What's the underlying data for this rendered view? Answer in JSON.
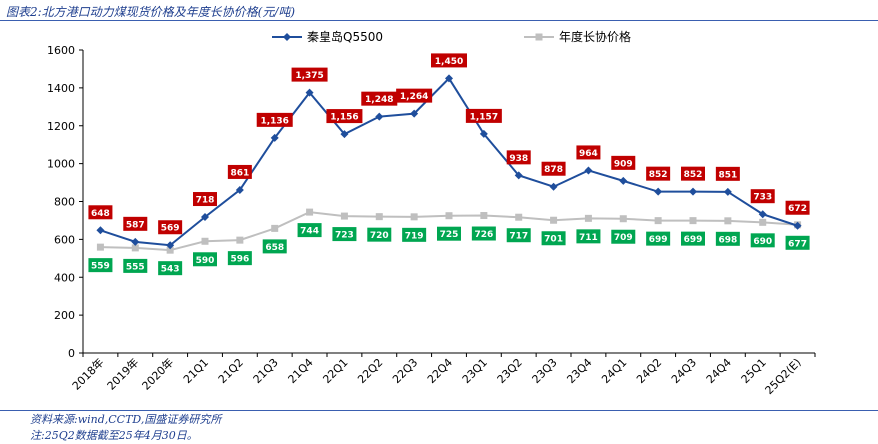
{
  "header": {
    "title": "图表2:北方港口动力煤现货价格及年度长协价格(元/吨)"
  },
  "footer": {
    "source": "资料来源:wind,CCTD,国盛证券研究所",
    "note": "注:25Q2数据截至25年4月30日。"
  },
  "chart_data": {
    "type": "line",
    "categories": [
      "2018年",
      "2019年",
      "2020年",
      "21Q1",
      "21Q2",
      "21Q3",
      "21Q4",
      "22Q1",
      "22Q2",
      "22Q3",
      "22Q4",
      "23Q1",
      "23Q2",
      "23Q3",
      "23Q4",
      "24Q1",
      "24Q2",
      "24Q3",
      "24Q4",
      "25Q1",
      "25Q2(E)"
    ],
    "series": [
      {
        "name": "秦皇岛Q5500",
        "color": "#1f4e9c",
        "label_color": "#c00000",
        "values": [
          648,
          587,
          569,
          718,
          861,
          1136,
          1375,
          1156,
          1248,
          1264,
          1450,
          1157,
          938,
          878,
          964,
          909,
          852,
          852,
          851,
          733,
          672
        ]
      },
      {
        "name": "年度长协价格",
        "color": "#bfbfbf",
        "label_color": "#00a651",
        "values": [
          559,
          555,
          543,
          590,
          596,
          658,
          744,
          723,
          720,
          719,
          725,
          726,
          717,
          701,
          711,
          709,
          699,
          699,
          698,
          690,
          677
        ]
      }
    ],
    "ylim": [
      0,
      1600
    ],
    "yticks": [
      0,
      200,
      400,
      600,
      800,
      1000,
      1200,
      1400,
      1600
    ],
    "grid": false,
    "legend": "top"
  }
}
